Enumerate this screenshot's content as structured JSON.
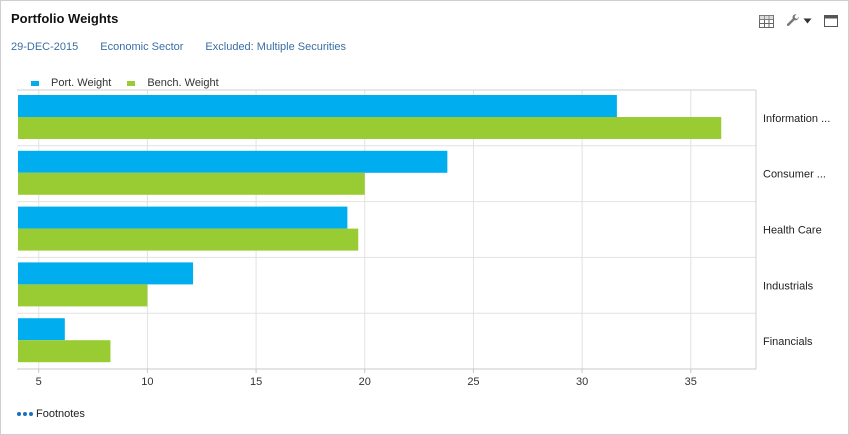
{
  "panel": {
    "title": "Portfolio Weights",
    "toolbar": {
      "grid_icon": "grid-icon",
      "wrench_icon": "wrench-icon",
      "dropdown_icon": "caret-down-icon",
      "maximize_icon": "maximize-icon"
    }
  },
  "subheader": {
    "date": "29-DEC-2015",
    "grouping": "Economic Sector",
    "exclusion": "Excluded: Multiple Securities"
  },
  "legend": [
    {
      "label": "Port. Weight",
      "color": "#00aeef"
    },
    {
      "label": "Bench. Weight",
      "color": "#99cc33"
    }
  ],
  "footnotes": {
    "label": "Footnotes"
  },
  "colors": {
    "link": "#3a6ea5",
    "grid": "#e2e2e2"
  },
  "chart_data": {
    "type": "bar",
    "orientation": "horizontal",
    "categories": [
      "Information ...",
      "Consumer ...",
      "Health Care",
      "Industrials",
      "Financials"
    ],
    "series": [
      {
        "name": "Port. Weight",
        "values": [
          31.6,
          23.8,
          19.2,
          12.1,
          6.2
        ],
        "color": "#00aeef"
      },
      {
        "name": "Bench. Weight",
        "values": [
          36.4,
          20.0,
          19.7,
          10.0,
          8.3
        ],
        "color": "#99cc33"
      }
    ],
    "xlim": [
      4,
      38
    ],
    "xticks": [
      5,
      10,
      15,
      20,
      25,
      30,
      35
    ],
    "grid": true,
    "legend_position": "top-left",
    "title": "",
    "xlabel": "",
    "ylabel": ""
  }
}
